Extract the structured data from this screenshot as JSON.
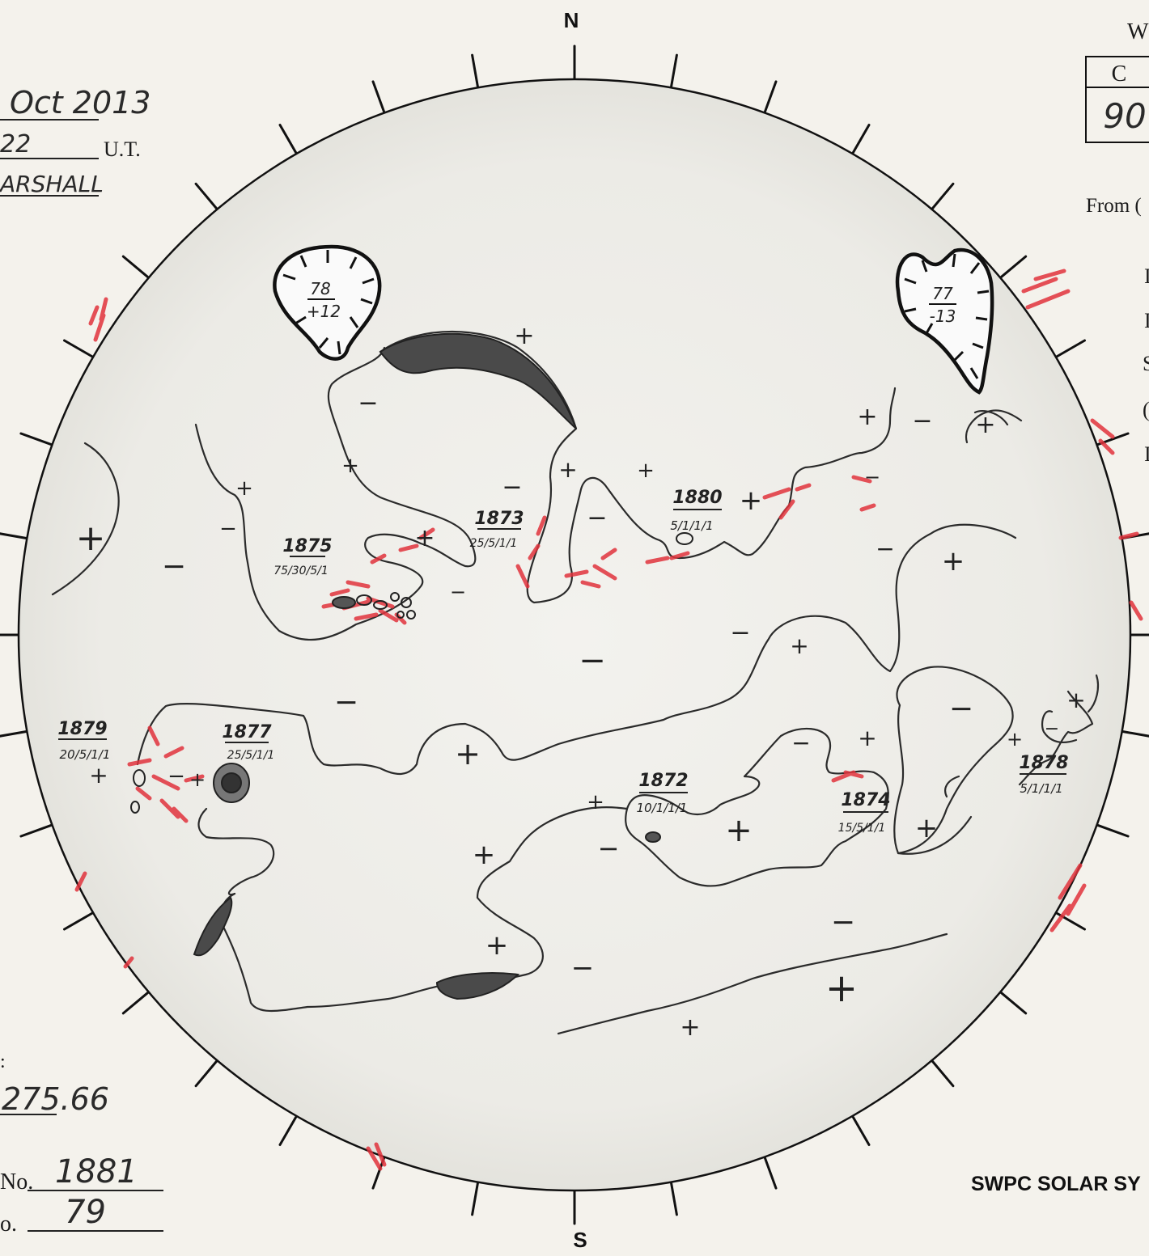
{
  "compass": {
    "north": "N",
    "south": "S"
  },
  "header": {
    "date": "Oct 2013",
    "time": "22",
    "time_unit": "U.T.",
    "observer": "ARSHALL"
  },
  "weather_table": {
    "title": "W",
    "col_label": "C",
    "col_value": "90"
  },
  "right_panel": {
    "from_label": "From (",
    "letters": [
      "I",
      "I",
      "S",
      "(",
      "I"
    ]
  },
  "bottom_left": {
    "colon": ":",
    "carrington_value": "275.66",
    "next_region_label": "No.",
    "next_region_value": "1881",
    "next_ch_label": "o.",
    "next_ch_value": "79"
  },
  "footer": {
    "title": "SWPC SOLAR SY"
  },
  "regions": [
    {
      "number": "1875",
      "class": "75/30/5/1"
    },
    {
      "number": "1873",
      "class": "25/5/1/1"
    },
    {
      "number": "1880",
      "class": "5/1/1/1"
    },
    {
      "number": "1879",
      "class": "20/5/1/1"
    },
    {
      "number": "1877",
      "class": "25/5/1/1"
    },
    {
      "number": "1872",
      "class": "10/1/1/1"
    },
    {
      "number": "1874",
      "class": "15/5/1/1"
    },
    {
      "number": "1878",
      "class": "5/1/1/1"
    }
  ],
  "coronal_holes": [
    {
      "number": "78",
      "lat": "+12"
    },
    {
      "number": "77",
      "lat": "-13"
    }
  ],
  "polarity": {
    "plus": "+",
    "minus": "−"
  }
}
